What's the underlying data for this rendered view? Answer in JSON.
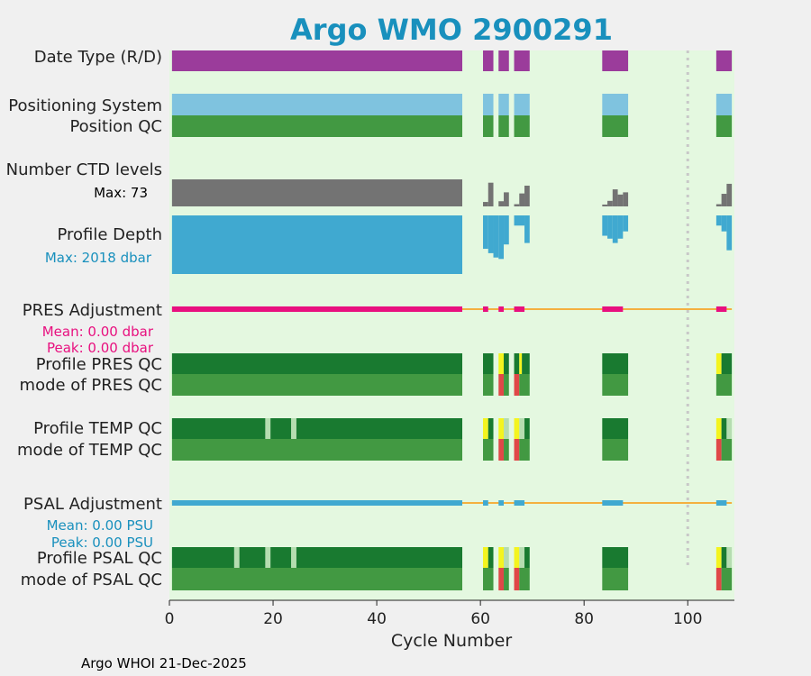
{
  "chart_data": {
    "type": "float-status-timeline",
    "title": "Argo WMO 2900291",
    "xlabel": "Cycle Number",
    "xlim": [
      0,
      109
    ],
    "xticks": [
      0,
      20,
      40,
      60,
      80,
      100
    ],
    "xtick_labels": [
      "0",
      "20",
      "40",
      "60",
      "80",
      "100"
    ],
    "reference_line_x": 100,
    "footer": "Argo WHOI 21-Dec-2025",
    "colors": {
      "background": "#e4f8e0",
      "figure": "#f0f0f0",
      "title": "#1990bd",
      "delayed": "#9b3c9b",
      "positioning": "#7fc3df",
      "qc_good": "#429942",
      "qc_profile_A": "#197a30",
      "qc_probably_good": "#b5ddb0",
      "qc_yellow": "#f4f41f",
      "qc_red": "#e04848",
      "ctd": "#737373",
      "depth": "#40a9d0",
      "pres_adj": "#e8107f",
      "psal_adj": "#40a9d0",
      "trend_line": "#f4b040",
      "ref_line": "#c8c8c8",
      "stat_pres": "#e8107f",
      "stat_psal": "#1990bd"
    },
    "row_labels": {
      "date_type": "Date Type (R/D)",
      "positioning": "Positioning System",
      "position_qc": "Position QC",
      "ctd_levels": "Number CTD levels",
      "profile_depth": "Profile Depth",
      "pres_adjustment": "PRES Adjustment",
      "profile_pres_qc": "Profile PRES QC",
      "mode_pres_qc": "mode of PRES QC",
      "profile_temp_qc": "Profile TEMP QC",
      "mode_temp_qc": "mode of TEMP QC",
      "psal_adjustment": "PSAL Adjustment",
      "profile_psal_qc": "Profile PSAL QC",
      "mode_psal_qc": "mode of PSAL QC"
    },
    "stats": {
      "ctd_max": "Max: 73",
      "depth_max": "Max: 2018 dbar",
      "pres_mean": "Mean: 0.00 dbar",
      "pres_peak": "Peak: 0.00 dbar",
      "psal_mean": "Mean: 0.00 PSU",
      "psal_peak": "Peak: 0.00 PSU"
    },
    "cycle_blocks": [
      [
        0.5,
        56.5
      ],
      [
        60.5,
        62.5
      ],
      [
        63.5,
        65.5
      ],
      [
        66.5,
        69.5
      ],
      [
        83.5,
        88.5
      ],
      [
        105.5,
        108.5
      ]
    ],
    "ctd_levels_max": 73,
    "ctd_levels": [
      {
        "x0": 0.5,
        "x1": 56.5,
        "v": 73
      },
      {
        "x0": 60.5,
        "x1": 61.5,
        "v": 12
      },
      {
        "x0": 61.5,
        "x1": 62.5,
        "v": 64
      },
      {
        "x0": 63.5,
        "x1": 64.5,
        "v": 14
      },
      {
        "x0": 64.5,
        "x1": 65.5,
        "v": 38
      },
      {
        "x0": 66.5,
        "x1": 67.5,
        "v": 6
      },
      {
        "x0": 67.5,
        "x1": 68.5,
        "v": 35
      },
      {
        "x0": 68.5,
        "x1": 69.5,
        "v": 56
      },
      {
        "x0": 83.5,
        "x1": 84.5,
        "v": 5
      },
      {
        "x0": 84.5,
        "x1": 85.5,
        "v": 15
      },
      {
        "x0": 85.5,
        "x1": 86.5,
        "v": 46
      },
      {
        "x0": 86.5,
        "x1": 87.5,
        "v": 32
      },
      {
        "x0": 87.5,
        "x1": 88.5,
        "v": 38
      },
      {
        "x0": 105.5,
        "x1": 106.5,
        "v": 6
      },
      {
        "x0": 106.5,
        "x1": 107.5,
        "v": 34
      },
      {
        "x0": 107.5,
        "x1": 108.5,
        "v": 61
      }
    ],
    "profile_depth_max": 2018,
    "profile_depth": [
      {
        "x0": 0.5,
        "x1": 56.5,
        "v": 2018
      },
      {
        "x0": 60.5,
        "x1": 61.5,
        "v": 1150
      },
      {
        "x0": 61.5,
        "x1": 62.5,
        "v": 1300
      },
      {
        "x0": 62.5,
        "x1": 63.5,
        "v": 1450
      },
      {
        "x0": 63.5,
        "x1": 64.5,
        "v": 1500
      },
      {
        "x0": 64.5,
        "x1": 65.5,
        "v": 1000
      },
      {
        "x0": 66.5,
        "x1": 68.5,
        "v": 350
      },
      {
        "x0": 68.5,
        "x1": 69.5,
        "v": 950
      },
      {
        "x0": 83.5,
        "x1": 84.5,
        "v": 700
      },
      {
        "x0": 84.5,
        "x1": 85.5,
        "v": 800
      },
      {
        "x0": 85.5,
        "x1": 86.5,
        "v": 950
      },
      {
        "x0": 86.5,
        "x1": 87.5,
        "v": 800
      },
      {
        "x0": 87.5,
        "x1": 88.5,
        "v": 550
      },
      {
        "x0": 105.5,
        "x1": 106.5,
        "v": 350
      },
      {
        "x0": 106.5,
        "x1": 107.5,
        "v": 550
      },
      {
        "x0": 107.5,
        "x1": 108.5,
        "v": 1200
      }
    ],
    "pres_adjustment_segments": [
      [
        0.5,
        56.5
      ],
      [
        60.5,
        61.5
      ],
      [
        63.5,
        64.5
      ],
      [
        66.5,
        68.5
      ],
      [
        83.5,
        87.5
      ],
      [
        105.5,
        107.5
      ]
    ],
    "psal_adjustment_segments": [
      [
        0.5,
        56.5
      ],
      [
        60.5,
        61.5
      ],
      [
        63.5,
        64.5
      ],
      [
        66.5,
        68.5
      ],
      [
        83.5,
        87.5
      ],
      [
        105.5,
        107.5
      ]
    ],
    "profile_pres_qc": [
      {
        "x0": 0.5,
        "x1": 56.5,
        "c": "qc_profile_A"
      },
      {
        "x0": 60.5,
        "x1": 62.5,
        "c": "qc_profile_A"
      },
      {
        "x0": 63.5,
        "x1": 64.5,
        "c": "qc_yellow"
      },
      {
        "x0": 64.5,
        "x1": 65.5,
        "c": "qc_profile_A"
      },
      {
        "x0": 66.5,
        "x1": 67.5,
        "c": "qc_profile_A"
      },
      {
        "x0": 67.5,
        "x1": 68.0,
        "c": "qc_yellow"
      },
      {
        "x0": 68.0,
        "x1": 69.5,
        "c": "qc_profile_A"
      },
      {
        "x0": 83.5,
        "x1": 88.5,
        "c": "qc_profile_A"
      },
      {
        "x0": 105.5,
        "x1": 106.5,
        "c": "qc_yellow"
      },
      {
        "x0": 106.5,
        "x1": 108.5,
        "c": "qc_profile_A"
      }
    ],
    "mode_pres_qc": [
      {
        "x0": 0.5,
        "x1": 56.5,
        "c": "qc_good"
      },
      {
        "x0": 60.5,
        "x1": 62.5,
        "c": "qc_good"
      },
      {
        "x0": 63.5,
        "x1": 64.5,
        "c": "qc_red"
      },
      {
        "x0": 64.5,
        "x1": 65.5,
        "c": "qc_good"
      },
      {
        "x0": 66.5,
        "x1": 67.5,
        "c": "qc_red"
      },
      {
        "x0": 67.5,
        "x1": 69.5,
        "c": "qc_good"
      },
      {
        "x0": 83.5,
        "x1": 88.5,
        "c": "qc_good"
      },
      {
        "x0": 105.5,
        "x1": 108.5,
        "c": "qc_good"
      }
    ],
    "profile_temp_qc": [
      {
        "x0": 0.5,
        "x1": 18.5,
        "c": "qc_profile_A"
      },
      {
        "x0": 18.5,
        "x1": 19.5,
        "c": "qc_probably_good"
      },
      {
        "x0": 19.5,
        "x1": 23.5,
        "c": "qc_profile_A"
      },
      {
        "x0": 23.5,
        "x1": 24.5,
        "c": "qc_probably_good"
      },
      {
        "x0": 24.5,
        "x1": 56.5,
        "c": "qc_profile_A"
      },
      {
        "x0": 60.5,
        "x1": 61.5,
        "c": "qc_yellow"
      },
      {
        "x0": 61.5,
        "x1": 62.5,
        "c": "qc_profile_A"
      },
      {
        "x0": 63.5,
        "x1": 64.5,
        "c": "qc_yellow"
      },
      {
        "x0": 64.5,
        "x1": 65.5,
        "c": "qc_probably_good"
      },
      {
        "x0": 66.5,
        "x1": 67.5,
        "c": "qc_yellow"
      },
      {
        "x0": 67.5,
        "x1": 68.5,
        "c": "qc_probably_good"
      },
      {
        "x0": 68.5,
        "x1": 69.5,
        "c": "qc_profile_A"
      },
      {
        "x0": 83.5,
        "x1": 88.5,
        "c": "qc_profile_A"
      },
      {
        "x0": 105.5,
        "x1": 106.5,
        "c": "qc_yellow"
      },
      {
        "x0": 106.5,
        "x1": 107.5,
        "c": "qc_profile_A"
      },
      {
        "x0": 107.5,
        "x1": 108.5,
        "c": "qc_probably_good"
      }
    ],
    "mode_temp_qc": [
      {
        "x0": 0.5,
        "x1": 56.5,
        "c": "qc_good"
      },
      {
        "x0": 60.5,
        "x1": 62.5,
        "c": "qc_good"
      },
      {
        "x0": 63.5,
        "x1": 64.5,
        "c": "qc_red"
      },
      {
        "x0": 64.5,
        "x1": 65.5,
        "c": "qc_good"
      },
      {
        "x0": 66.5,
        "x1": 67.5,
        "c": "qc_red"
      },
      {
        "x0": 67.5,
        "x1": 69.5,
        "c": "qc_good"
      },
      {
        "x0": 83.5,
        "x1": 88.5,
        "c": "qc_good"
      },
      {
        "x0": 105.5,
        "x1": 106.5,
        "c": "qc_red"
      },
      {
        "x0": 106.5,
        "x1": 108.5,
        "c": "qc_good"
      }
    ],
    "profile_psal_qc": [
      {
        "x0": 0.5,
        "x1": 12.5,
        "c": "qc_profile_A"
      },
      {
        "x0": 12.5,
        "x1": 13.5,
        "c": "qc_probably_good"
      },
      {
        "x0": 13.5,
        "x1": 18.5,
        "c": "qc_profile_A"
      },
      {
        "x0": 18.5,
        "x1": 19.5,
        "c": "qc_probably_good"
      },
      {
        "x0": 19.5,
        "x1": 23.5,
        "c": "qc_profile_A"
      },
      {
        "x0": 23.5,
        "x1": 24.5,
        "c": "qc_probably_good"
      },
      {
        "x0": 24.5,
        "x1": 56.5,
        "c": "qc_profile_A"
      },
      {
        "x0": 60.5,
        "x1": 61.5,
        "c": "qc_yellow"
      },
      {
        "x0": 61.5,
        "x1": 62.5,
        "c": "qc_profile_A"
      },
      {
        "x0": 63.5,
        "x1": 64.5,
        "c": "qc_yellow"
      },
      {
        "x0": 64.5,
        "x1": 65.5,
        "c": "qc_probably_good"
      },
      {
        "x0": 66.5,
        "x1": 67.5,
        "c": "qc_yellow"
      },
      {
        "x0": 67.5,
        "x1": 68.5,
        "c": "qc_probably_good"
      },
      {
        "x0": 68.5,
        "x1": 69.5,
        "c": "qc_profile_A"
      },
      {
        "x0": 83.5,
        "x1": 88.5,
        "c": "qc_profile_A"
      },
      {
        "x0": 105.5,
        "x1": 106.5,
        "c": "qc_yellow"
      },
      {
        "x0": 106.5,
        "x1": 107.5,
        "c": "qc_profile_A"
      },
      {
        "x0": 107.5,
        "x1": 108.5,
        "c": "qc_probably_good"
      }
    ],
    "mode_psal_qc": [
      {
        "x0": 0.5,
        "x1": 56.5,
        "c": "qc_good"
      },
      {
        "x0": 60.5,
        "x1": 62.5,
        "c": "qc_good"
      },
      {
        "x0": 63.5,
        "x1": 64.5,
        "c": "qc_red"
      },
      {
        "x0": 64.5,
        "x1": 65.5,
        "c": "qc_good"
      },
      {
        "x0": 66.5,
        "x1": 67.5,
        "c": "qc_red"
      },
      {
        "x0": 67.5,
        "x1": 69.5,
        "c": "qc_good"
      },
      {
        "x0": 83.5,
        "x1": 88.5,
        "c": "qc_good"
      },
      {
        "x0": 105.5,
        "x1": 106.5,
        "c": "qc_red"
      },
      {
        "x0": 106.5,
        "x1": 108.5,
        "c": "qc_good"
      }
    ]
  }
}
